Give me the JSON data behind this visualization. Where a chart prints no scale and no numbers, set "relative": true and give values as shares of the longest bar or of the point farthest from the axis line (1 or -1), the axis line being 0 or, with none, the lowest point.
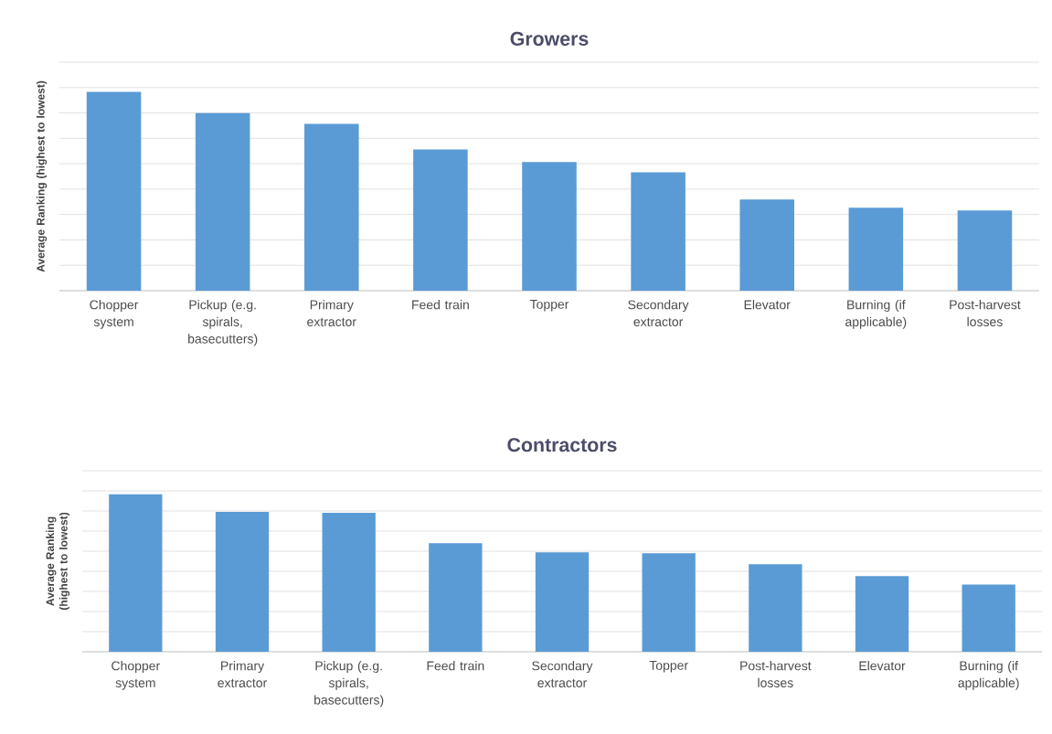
{
  "chart_data": [
    {
      "type": "bar",
      "title": "Growers",
      "ylabel": "Average Ranking (highest to lowest)",
      "categories": [
        "Chopper system",
        "Pickup (e.g. spirals, basecutters)",
        "Primary extractor",
        "Feed train",
        "Topper",
        "Secondary extractor",
        "Elevator",
        "Burning (if applicable)",
        "Post-harvest losses"
      ],
      "values": [
        1,
        0.894,
        0.839,
        0.711,
        0.647,
        0.596,
        0.459,
        0.417,
        0.404
      ],
      "color": "#5b9bd5",
      "relative": true,
      "grid": "y"
    },
    {
      "type": "bar",
      "title": "Contractors",
      "ylabel": "Average Ranking (highest to lowest)",
      "categories": [
        "Chopper system",
        "Primary extractor",
        "Pickup (e.g. spirals, basecutters)",
        "Feed train",
        "Secondary extractor",
        "Topper",
        "Post-harvest losses",
        "Elevator",
        "Burning (if applicable)"
      ],
      "values": [
        1,
        0.889,
        0.883,
        0.69,
        0.632,
        0.626,
        0.556,
        0.48,
        0.427
      ],
      "color": "#5b9bd5",
      "relative": true,
      "grid": "y"
    }
  ]
}
